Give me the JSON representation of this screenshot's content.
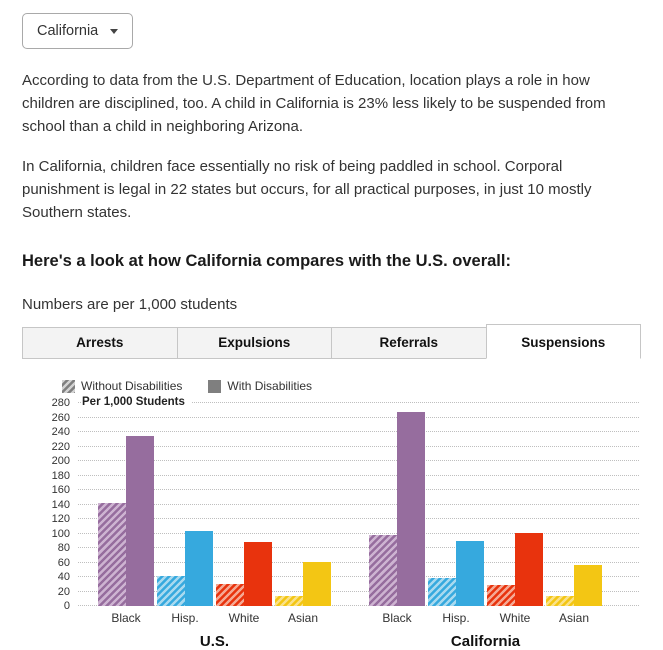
{
  "dropdown": {
    "value": "California"
  },
  "paragraphs": [
    "According to data from the U.S. Department of Education, location plays a role in how children are disciplined, too. A child in California is 23% less likely to be suspended from school than a child in neighboring Arizona.",
    "In California, children face essentially no risk of being paddled in school. Corporal punishment is legal in 22 states but occurs, for all practical purposes, in just 10 mostly Southern states."
  ],
  "heading": "Here's a look at how California compares with the U.S. overall:",
  "subtitle": "Numbers are per 1,000 students",
  "tabs": [
    {
      "label": "Arrests",
      "active": false
    },
    {
      "label": "Expulsions",
      "active": false
    },
    {
      "label": "Referrals",
      "active": false
    },
    {
      "label": "Suspensions",
      "active": true
    }
  ],
  "legend": [
    {
      "label": "Without Disabilities",
      "style": "hatched"
    },
    {
      "label": "With Disabilities",
      "style": "solid"
    }
  ],
  "legend_colors": {
    "solid": "#7f7f7f",
    "light": "#d2d2d2"
  },
  "chart_data": {
    "type": "bar",
    "title": "Per 1,000 Students",
    "ylabel": "Per 1,000 Students",
    "ylim": [
      0,
      280
    ],
    "ytick_step": 20,
    "grid": "dotted horizontal",
    "legend_position": "top-left",
    "groups": [
      "U.S.",
      "California"
    ],
    "categories": [
      "Black",
      "Hisp.",
      "White",
      "Asian"
    ],
    "series": [
      {
        "name": "Without Disabilities",
        "style": "hatched",
        "values": {
          "U.S.": [
            142,
            42,
            30,
            14
          ],
          "California": [
            98,
            38,
            29,
            14
          ]
        }
      },
      {
        "name": "With Disabilities",
        "style": "solid",
        "values": {
          "U.S.": [
            234,
            103,
            88,
            61
          ],
          "California": [
            267,
            89,
            100,
            56
          ]
        }
      }
    ],
    "palette": [
      {
        "category": "Black",
        "solid": "#966d9e",
        "light": "#cdb3d1"
      },
      {
        "category": "Hisp.",
        "solid": "#36a9de",
        "light": "#a8d9ef"
      },
      {
        "category": "White",
        "solid": "#e8330d",
        "light": "#f5a893"
      },
      {
        "category": "Asian",
        "solid": "#f3c614",
        "light": "#fae187"
      }
    ]
  }
}
